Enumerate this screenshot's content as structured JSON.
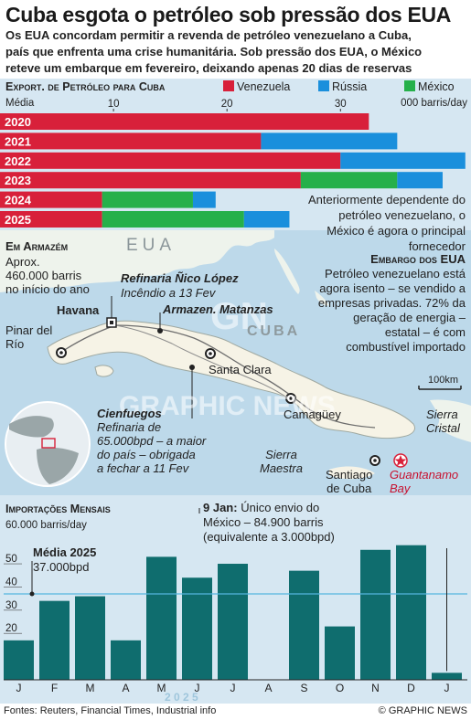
{
  "header": {
    "title": "Cuba esgota o petróleo sob pressão dos EUA",
    "subtitle_lines": [
      "Os EUA concordam permitir a revenda de petróleo venezuelano a Cuba,",
      "país que enfrenta uma crise humanitária. Sob pressão dos EUA, o México",
      "reteve um embarque em fevereiro, deixando apenas 20 dias de reservas"
    ]
  },
  "exports": {
    "title": "Export. de Petróleo para Cuba",
    "unit_label": "000 barris/day",
    "axis_label": "Média"
  },
  "map": {
    "us_label": "EUA",
    "cuba_label": "CUBA",
    "storage_title": "Em Armazém",
    "storage_text": [
      "Aprox.",
      "460.000 barris",
      "no início do ano"
    ],
    "havana": "Havana",
    "refinery_title": "Refinaria Ñico López",
    "refinery_text": "Incêndio a 13 Fev",
    "matanzas": "Armazen. Matanzas",
    "pinar": [
      "Pinar del",
      "Río"
    ],
    "santa_clara": "Santa Clara",
    "camaguey": "Camagüey",
    "cienfuegos_title": "Cienfuegos",
    "cienfuegos_text": [
      "Refinaria de",
      "65.000bpd – a maior",
      "do país – obrigada",
      "a fechar a 11 Fev"
    ],
    "sierra_maestra": [
      "Sierra",
      "Maestra"
    ],
    "santiago": [
      "Santiago",
      "de Cuba"
    ],
    "guantanamo": [
      "Guantanamo",
      "Bay"
    ],
    "sierra_cristal": [
      "Sierra",
      "Cristal"
    ],
    "scale": "100km",
    "mexico_note": [
      "Anteriormente dependente do",
      "petróleo venezuelano, o",
      "México é agora o principal",
      "fornecedor"
    ],
    "embargo_title": "Embargo dos EUA",
    "embargo_text": [
      "Petróleo venezuelano está",
      "agora isento – se vendido a",
      "empresas privadas. 72% da",
      "geração de energia –",
      "estatal – é com",
      "combustível importado"
    ],
    "watermark_1": "GRAPHIC NEWS",
    "watermark_2": "GN"
  },
  "imports": {
    "title": "Importações Mensais",
    "unit_label": "60.000 barris/day",
    "avg_title": "Média 2025",
    "avg_value": "37.000bpd",
    "note_title": "9 Jan:",
    "note_text": [
      "Único envio do",
      "México – 84.900 barris",
      "(equivalente a 3.000bpd)"
    ],
    "year": "2 0 2 5"
  },
  "footer": {
    "sources": "Fontes: Reuters, Financial Times, Industrial info",
    "credit": "© GRAPHIC NEWS"
  },
  "colors": {
    "venezuela": "#d8203a",
    "russia": "#1a8fdc",
    "mexico": "#26b04a",
    "imports_bar": "#0f6d6e",
    "avg_line": "#55b5df"
  },
  "chart_data": [
    {
      "type": "bar",
      "orientation": "horizontal",
      "stacked": true,
      "title": "Export. de Petróleo para Cuba",
      "unit": "000 barris/day",
      "axis_label": "Média",
      "categories": [
        "2020",
        "2021",
        "2022",
        "2023",
        "2024",
        "2025"
      ],
      "series": [
        {
          "name": "Venezuela",
          "values": [
            32.5,
            23,
            30,
            26.5,
            9,
            9
          ]
        },
        {
          "name": "México",
          "values": [
            0,
            0,
            0,
            8.5,
            8,
            12.5
          ]
        },
        {
          "name": "Rússia",
          "values": [
            0,
            12,
            11,
            4,
            2,
            4
          ]
        }
      ],
      "xticks": [
        10,
        20,
        30
      ],
      "xlim": [
        0,
        41.5
      ],
      "legend": [
        "Venezuela",
        "Rússia",
        "México"
      ],
      "legend_position": "top"
    },
    {
      "type": "bar",
      "title": "Importações Mensais",
      "unit": "60.000 barris/day",
      "categories": [
        "J",
        "F",
        "M",
        "A",
        "M",
        "J",
        "J",
        "A",
        "S",
        "O",
        "N",
        "D",
        "J"
      ],
      "values": [
        17,
        34,
        36,
        17,
        53,
        44,
        50,
        0,
        47,
        23,
        56,
        58,
        3
      ],
      "yticks": [
        20,
        30,
        40,
        50
      ],
      "ylim": [
        0,
        63
      ],
      "average": 37,
      "x_group_label": "2 0 2 5"
    }
  ]
}
